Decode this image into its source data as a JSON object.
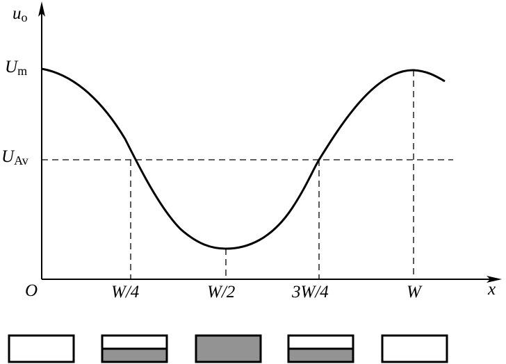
{
  "axes": {
    "y_label": {
      "symbol": "u",
      "subscript": "o"
    },
    "x_label": "x",
    "origin": "O"
  },
  "y_ticks": [
    {
      "symbol": "U",
      "subscript": "m"
    },
    {
      "symbol": "U",
      "subscript": "Av"
    }
  ],
  "x_ticks": [
    "W/4",
    "W/2",
    "3W/4",
    "W"
  ],
  "states": [
    {
      "filled_fraction": 0
    },
    {
      "filled_fraction": 0.5
    },
    {
      "filled_fraction": 1
    },
    {
      "filled_fraction": 0.5
    },
    {
      "filled_fraction": 0
    }
  ],
  "colors": {
    "line": "#000000",
    "fill": "#939393"
  }
}
